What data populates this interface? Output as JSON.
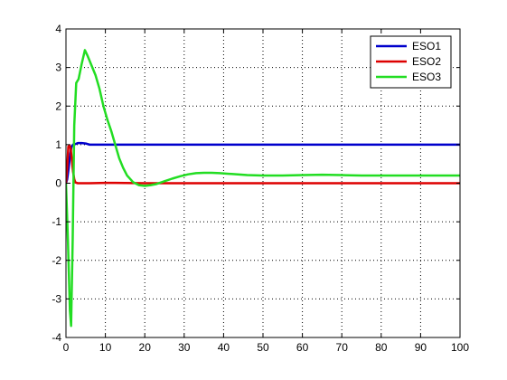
{
  "chart_data": {
    "type": "line",
    "title": "",
    "xlabel": "",
    "ylabel": "",
    "xlim": [
      0,
      100
    ],
    "ylim": [
      -4,
      4
    ],
    "xticks": [
      0,
      10,
      20,
      30,
      40,
      50,
      60,
      70,
      80,
      90,
      100
    ],
    "yticks": [
      -4,
      -3,
      -2,
      -1,
      0,
      1,
      2,
      3,
      4
    ],
    "grid": true,
    "grid_style": "dotted",
    "legend_position": "top-right",
    "series": [
      {
        "name": "ESO1",
        "color": "#0000cc",
        "points": [
          [
            0,
            0
          ],
          [
            0.3,
            0.1
          ],
          [
            0.7,
            0.4
          ],
          [
            1.0,
            0.7
          ],
          [
            1.4,
            0.95
          ],
          [
            1.8,
            1.0
          ],
          [
            2.5,
            1.02
          ],
          [
            3,
            1.04
          ],
          [
            4,
            1.04
          ],
          [
            5,
            1.03
          ],
          [
            6,
            1.0
          ],
          [
            8,
            1.0
          ],
          [
            20,
            1.0
          ],
          [
            40,
            1.0
          ],
          [
            60,
            1.0
          ],
          [
            80,
            1.0
          ],
          [
            100,
            1.0
          ]
        ]
      },
      {
        "name": "ESO2",
        "color": "#dd0000",
        "points": [
          [
            0,
            0
          ],
          [
            0.3,
            0.4
          ],
          [
            0.6,
            0.95
          ],
          [
            0.9,
            0.98
          ],
          [
            1.2,
            0.9
          ],
          [
            1.5,
            0.6
          ],
          [
            1.8,
            0.3
          ],
          [
            2.1,
            0.1
          ],
          [
            2.4,
            0.02
          ],
          [
            3,
            0.0
          ],
          [
            6,
            0.0
          ],
          [
            10,
            0.01
          ],
          [
            20,
            0.0
          ],
          [
            40,
            0.0
          ],
          [
            60,
            0.0
          ],
          [
            80,
            0.0
          ],
          [
            100,
            0.0
          ]
        ]
      },
      {
        "name": "ESO3",
        "color": "#22dd22",
        "points": [
          [
            0,
            0
          ],
          [
            0.5,
            -1.5
          ],
          [
            1.0,
            -3.3
          ],
          [
            1.3,
            -3.7
          ],
          [
            1.7,
            -1.5
          ],
          [
            2.1,
            1.5
          ],
          [
            2.6,
            2.6
          ],
          [
            3.2,
            2.7
          ],
          [
            4.0,
            3.1
          ],
          [
            4.8,
            3.45
          ],
          [
            5.5,
            3.3
          ],
          [
            6.5,
            3.05
          ],
          [
            7.5,
            2.8
          ],
          [
            8.5,
            2.45
          ],
          [
            9.5,
            2.0
          ],
          [
            10.5,
            1.65
          ],
          [
            11.5,
            1.35
          ],
          [
            12.5,
            1.0
          ],
          [
            13.5,
            0.65
          ],
          [
            14.5,
            0.4
          ],
          [
            15.5,
            0.2
          ],
          [
            17,
            0.03
          ],
          [
            18.5,
            -0.05
          ],
          [
            20,
            -0.07
          ],
          [
            21.5,
            -0.05
          ],
          [
            23,
            -0.02
          ],
          [
            25,
            0.05
          ],
          [
            27,
            0.12
          ],
          [
            29,
            0.18
          ],
          [
            31,
            0.23
          ],
          [
            33,
            0.26
          ],
          [
            35,
            0.27
          ],
          [
            37,
            0.27
          ],
          [
            39,
            0.26
          ],
          [
            42,
            0.24
          ],
          [
            46,
            0.21
          ],
          [
            50,
            0.2
          ],
          [
            55,
            0.2
          ],
          [
            60,
            0.21
          ],
          [
            65,
            0.22
          ],
          [
            70,
            0.21
          ],
          [
            75,
            0.2
          ],
          [
            80,
            0.2
          ],
          [
            85,
            0.2
          ],
          [
            90,
            0.2
          ],
          [
            95,
            0.2
          ],
          [
            100,
            0.2
          ]
        ]
      }
    ]
  }
}
